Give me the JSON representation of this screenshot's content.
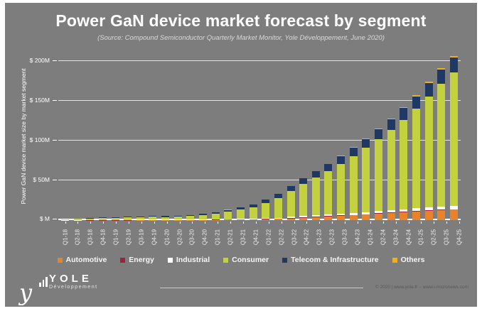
{
  "slide": {
    "title": "Power GaN device market forecast by segment",
    "subtitle": "(Source: Compound Semiconductor Quarterly Market Monitor, Yole Développement, June 2020)",
    "background_color": "#7D7D7D"
  },
  "chart_data": {
    "type": "bar",
    "stacked": true,
    "title": "Power GaN device market forecast by segment",
    "xlabel": "",
    "ylabel": "Power GaN device market size by market segment",
    "unit": "$M",
    "ylim": [
      0,
      200
    ],
    "grid": true,
    "legend_position": "bottom",
    "ytick_values": [
      0,
      50,
      100,
      150,
      200
    ],
    "ytick_labels": [
      "$ M",
      "$ 50M",
      "$ 100M",
      "$ 150M",
      "$ 200M"
    ],
    "categories": [
      "Q1-18",
      "Q2-18",
      "Q3-18",
      "Q4-18",
      "Q1-19",
      "Q2-19",
      "Q3-19",
      "Q4-19",
      "Q1-20",
      "Q2-20",
      "Q3-20",
      "Q4-20",
      "Q1-21",
      "Q2-21",
      "Q3-21",
      "Q4-21",
      "Q1-22",
      "Q2-22",
      "Q3-22",
      "Q4-22",
      "Q1-23",
      "Q2-23",
      "Q3-23",
      "Q4-23",
      "Q1-24",
      "Q2-24",
      "Q3-24",
      "Q4-24",
      "Q1-25",
      "Q2-25",
      "Q3-25",
      "Q4-25"
    ],
    "series": [
      {
        "name": "Automotive",
        "color": "#E8822D",
        "values": [
          0,
          0,
          0,
          0,
          0,
          0,
          0.1,
          0.1,
          0.1,
          0.1,
          0.2,
          0.3,
          0.4,
          0.5,
          0.7,
          0.9,
          1.2,
          1.6,
          2.2,
          3.0,
          3.8,
          4.6,
          5.4,
          6.2,
          7.0,
          7.9,
          8.8,
          9.8,
          10.8,
          11.6,
          12.3,
          13.0
        ]
      },
      {
        "name": "Energy",
        "color": "#A0213B",
        "values": [
          0,
          0,
          0.1,
          0.1,
          0.1,
          0.1,
          0.1,
          0.1,
          0.1,
          0.1,
          0.1,
          0.1,
          0.2,
          0.2,
          0.2,
          0.3,
          0.3,
          0.3,
          0.4,
          0.4,
          0.4,
          0.5,
          0.5,
          0.5,
          0.5,
          0.6,
          0.6,
          0.6,
          0.6,
          0.7,
          0.7,
          0.7
        ]
      },
      {
        "name": "Industrial",
        "color": "#FFFFFF",
        "values": [
          0.1,
          0.1,
          0.1,
          0.2,
          0.2,
          0.2,
          0.3,
          0.3,
          0.3,
          0.3,
          0.4,
          0.4,
          0.5,
          0.6,
          0.7,
          0.8,
          1.0,
          1.2,
          1.5,
          1.8,
          2.0,
          2.2,
          2.4,
          2.6,
          2.8,
          3.0,
          3.2,
          3.4,
          3.6,
          3.8,
          3.9,
          4.0
        ]
      },
      {
        "name": "Consumer",
        "color": "#C4D13F",
        "values": [
          0.9,
          1.3,
          1.6,
          2.2,
          2.7,
          3.2,
          3.3,
          3.8,
          3.5,
          4.0,
          4.5,
          5.6,
          6.9,
          9.2,
          11.4,
          14.4,
          19.1,
          24.6,
          32.5,
          40.3,
          47.4,
          54.4,
          62.5,
          71.4,
          80.5,
          90.2,
          100.8,
          112.3,
          124.8,
          139.4,
          154.6,
          168.3
        ]
      },
      {
        "name": "Telecom & Infrastructure",
        "color": "#1F3864",
        "values": [
          0.3,
          0.4,
          0.6,
          0.7,
          0.8,
          0.9,
          1.0,
          1.1,
          1.0,
          1.1,
          1.3,
          1.6,
          1.9,
          2.4,
          2.9,
          3.4,
          4.2,
          5.0,
          6.0,
          7.0,
          7.8,
          8.6,
          9.4,
          10.4,
          11.2,
          12.2,
          13.4,
          14.6,
          15.8,
          17.0,
          18.0,
          18.5
        ]
      },
      {
        "name": "Others",
        "color": "#EFAF21",
        "values": [
          0,
          0,
          0,
          0,
          0,
          0,
          0,
          0,
          0,
          0,
          0,
          0,
          0.1,
          0.1,
          0.1,
          0.2,
          0.2,
          0.3,
          0.4,
          0.5,
          0.6,
          0.7,
          0.8,
          0.9,
          1.0,
          1.1,
          1.2,
          1.3,
          1.4,
          1.5,
          1.5,
          1.5
        ]
      }
    ],
    "totals_note": "stacked totals approx: 2018 ~$1-3M/qtr rising to ~$206M in Q4-25"
  },
  "footer": {
    "logo_name": "YOLE",
    "logo_subtitle": "Développement",
    "copyright": "© 2020 | www.yole.fr – www.i-micronews.com"
  }
}
